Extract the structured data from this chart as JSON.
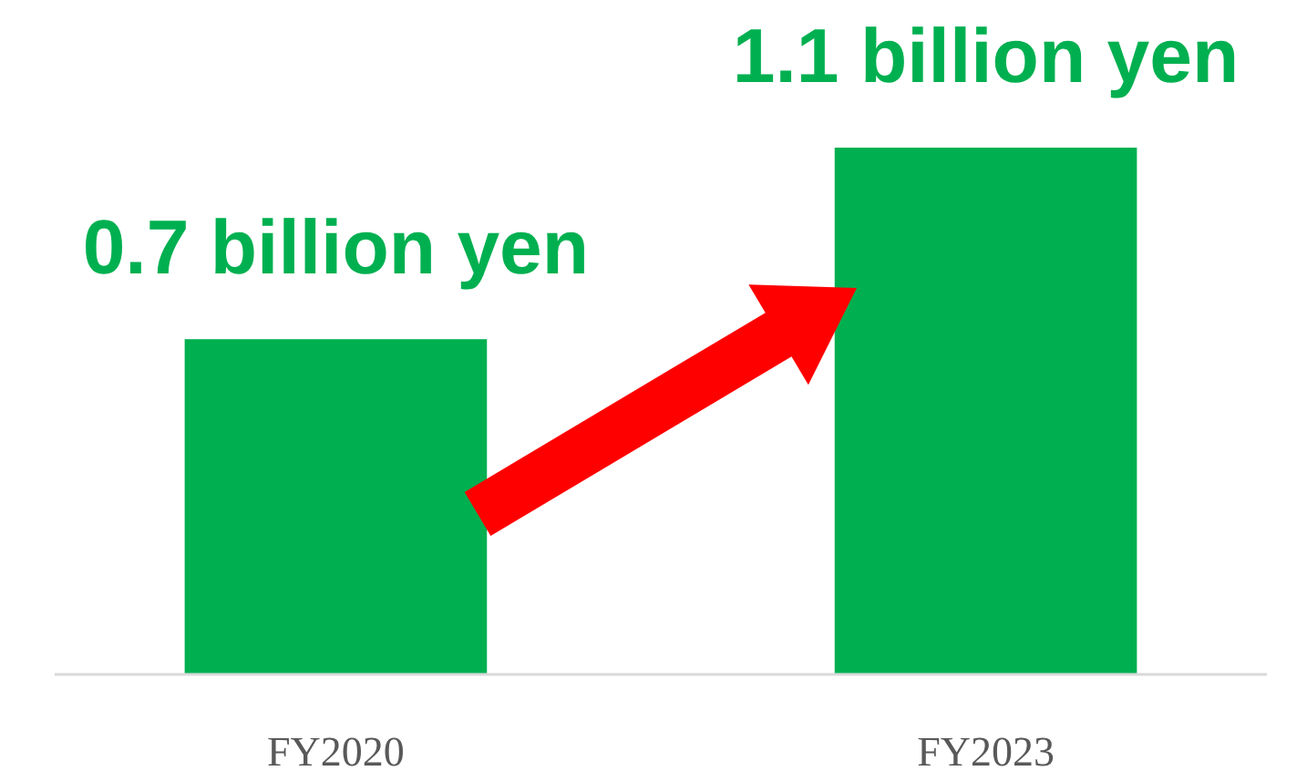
{
  "chart_data": {
    "type": "bar",
    "categories": [
      "FY2020",
      "FY2023"
    ],
    "values": [
      0.7,
      1.1
    ],
    "value_labels": [
      "0.7 billion yen",
      "1.1 billion yen"
    ],
    "color": "#00b050"
  }
}
